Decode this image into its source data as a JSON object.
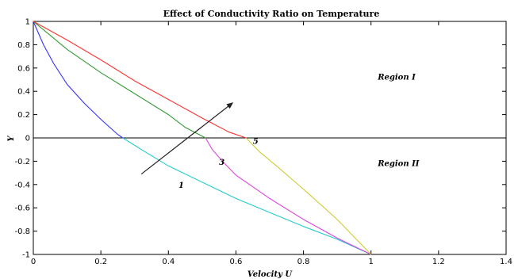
{
  "chart_data": {
    "type": "line",
    "title": "Effect of Conductivity Ratio on Temperature",
    "xlabel": "Velocity U",
    "ylabel": "Y",
    "xlim": [
      0,
      1.4
    ],
    "ylim": [
      -1,
      1
    ],
    "xticks": [
      "0",
      "0.2",
      "0.4",
      "0.6",
      "0.8",
      "1",
      "1.2",
      "1.4"
    ],
    "yticks": [
      "1",
      "0.8",
      "0.6",
      "0.4",
      "0.2",
      "0",
      "-0.2",
      "-0.4",
      "-0.6",
      "-0.8",
      "-1"
    ],
    "grid": false,
    "region_labels": [
      "Region I",
      "Region II"
    ],
    "curve_labels": [
      "1",
      "3",
      "5"
    ],
    "series": [
      {
        "name": "1",
        "region": "I",
        "color": "#3333ff",
        "points": [
          [
            0,
            1
          ],
          [
            0.03,
            0.8
          ],
          [
            0.06,
            0.64
          ],
          [
            0.1,
            0.46
          ],
          [
            0.15,
            0.3
          ],
          [
            0.2,
            0.16
          ],
          [
            0.25,
            0.03
          ],
          [
            0.265,
            0
          ]
        ]
      },
      {
        "name": "1",
        "region": "II",
        "color": "#22cccc",
        "points": [
          [
            0.265,
            0
          ],
          [
            0.32,
            -0.1
          ],
          [
            0.4,
            -0.24
          ],
          [
            0.5,
            -0.38
          ],
          [
            0.6,
            -0.52
          ],
          [
            0.7,
            -0.64
          ],
          [
            0.8,
            -0.76
          ],
          [
            0.9,
            -0.87
          ],
          [
            1,
            -1
          ]
        ]
      },
      {
        "name": "3",
        "region": "I",
        "color": "#339933",
        "points": [
          [
            0,
            1
          ],
          [
            0.05,
            0.88
          ],
          [
            0.1,
            0.76
          ],
          [
            0.2,
            0.56
          ],
          [
            0.3,
            0.38
          ],
          [
            0.4,
            0.2
          ],
          [
            0.45,
            0.09
          ],
          [
            0.51,
            0
          ]
        ]
      },
      {
        "name": "3",
        "region": "II",
        "color": "#dd44dd",
        "points": [
          [
            0.51,
            0
          ],
          [
            0.53,
            -0.1
          ],
          [
            0.56,
            -0.2
          ],
          [
            0.6,
            -0.32
          ],
          [
            0.7,
            -0.52
          ],
          [
            0.8,
            -0.7
          ],
          [
            0.9,
            -0.86
          ],
          [
            1,
            -1
          ]
        ]
      },
      {
        "name": "5",
        "region": "I",
        "color": "#ff3333",
        "points": [
          [
            0,
            1
          ],
          [
            0.1,
            0.84
          ],
          [
            0.2,
            0.67
          ],
          [
            0.3,
            0.49
          ],
          [
            0.4,
            0.33
          ],
          [
            0.5,
            0.17
          ],
          [
            0.58,
            0.05
          ],
          [
            0.63,
            0
          ]
        ]
      },
      {
        "name": "5",
        "region": "II",
        "color": "#cccc33",
        "points": [
          [
            0.63,
            0
          ],
          [
            0.67,
            -0.12
          ],
          [
            0.72,
            -0.24
          ],
          [
            0.8,
            -0.44
          ],
          [
            0.9,
            -0.7
          ],
          [
            1,
            -1
          ]
        ]
      }
    ],
    "arrow": {
      "from": [
        0.32,
        -0.31
      ],
      "to": [
        0.59,
        0.3
      ]
    }
  }
}
